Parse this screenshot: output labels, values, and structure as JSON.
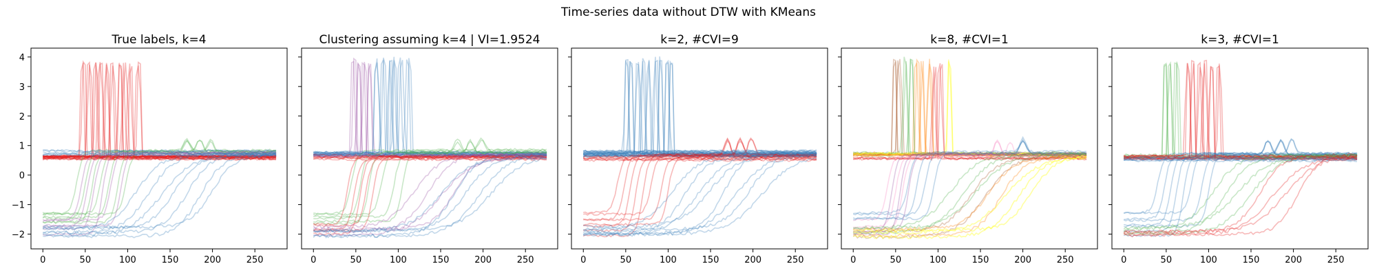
{
  "figure": {
    "suptitle": "Time-series data without DTW with KMeans"
  },
  "chart_data": [
    {
      "type": "line",
      "title": "True labels, k=4",
      "xlim": [
        -14,
        288
      ],
      "ylim": [
        -2.5,
        4.3
      ],
      "x_ticks": [
        0,
        50,
        100,
        150,
        200,
        250
      ],
      "y_ticks": [
        -2,
        -1,
        0,
        1,
        2,
        3,
        4
      ],
      "show_y_tick_labels": true,
      "grid": false,
      "series": [
        {
          "color": "#e41a1c",
          "kind": "spike",
          "spike_x": [
            48,
            55,
            62,
            68,
            75,
            82,
            90,
            96,
            103,
            112
          ],
          "baseline": 0.6
        },
        {
          "color": "#4daf4a",
          "kind": "plateau",
          "rise_x": [
            40,
            50,
            58,
            68,
            78,
            88,
            98
          ],
          "lows": [
            -1.3,
            -1.45,
            -1.6
          ],
          "high": 0.8,
          "bump_x": [
            170,
            185,
            198
          ],
          "bump_y": 1.2
        },
        {
          "color": "#984ea3",
          "kind": "plateau",
          "rise_x": [
            45,
            52,
            60,
            70,
            80,
            92
          ],
          "lows": [
            -1.55,
            -1.7,
            -1.85,
            -2.0
          ],
          "high": 0.75
        },
        {
          "color": "#377eb8",
          "kind": "slow",
          "rise_x": [
            110,
            125,
            140,
            155,
            170,
            185,
            200
          ],
          "lows": [
            -1.8,
            -1.95,
            -2.05
          ],
          "high": 0.7,
          "flat_level": 0.75
        }
      ]
    },
    {
      "type": "line",
      "title": "Clustering assuming k=4 | VI=1.9524",
      "xlim": [
        -14,
        288
      ],
      "ylim": [
        -2.5,
        4.3
      ],
      "x_ticks": [
        0,
        50,
        100,
        150,
        200,
        250
      ],
      "y_ticks": [
        -2,
        -1,
        0,
        1,
        2,
        3,
        4
      ],
      "show_y_tick_labels": false,
      "grid": false,
      "series": [
        {
          "color": "#984ea3",
          "kind": "spike",
          "spike_x": [
            48,
            54,
            60,
            66
          ],
          "baseline": 0.7
        },
        {
          "color": "#377eb8",
          "kind": "spike",
          "spike_x": [
            75,
            82,
            90,
            96,
            103,
            112
          ],
          "baseline": 0.72
        },
        {
          "color": "#4daf4a",
          "kind": "plateau",
          "rise_x": [
            45,
            55,
            65,
            80,
            95,
            105
          ],
          "lows": [
            -1.3,
            -1.45,
            -1.6
          ],
          "high": 0.8,
          "bump_x": [
            170,
            185,
            198
          ],
          "bump_y": 1.2
        },
        {
          "color": "#e41a1c",
          "kind": "plateau",
          "rise_x": [
            40,
            48,
            55,
            62,
            70
          ],
          "lows": [
            -1.7,
            -1.85,
            -2.0
          ],
          "high": 0.6,
          "flat_level": 0.6
        },
        {
          "color": "#984ea3",
          "kind": "slow",
          "rise_x": [
            120,
            135,
            150,
            165
          ],
          "lows": [
            -1.8,
            -1.95,
            -2.05
          ],
          "high": 0.65
        },
        {
          "color": "#377eb8",
          "kind": "slow",
          "rise_x": [
            150,
            165,
            180,
            195,
            210
          ],
          "lows": [
            -1.9,
            -2.05
          ],
          "high": 0.65
        }
      ]
    },
    {
      "type": "line",
      "title": "k=2, #CVI=9",
      "xlim": [
        -14,
        288
      ],
      "ylim": [
        -2.5,
        4.3
      ],
      "x_ticks": [
        0,
        50,
        100,
        150,
        200,
        250
      ],
      "y_ticks": [
        -2,
        -1,
        0,
        1,
        2,
        3,
        4
      ],
      "show_y_tick_labels": false,
      "grid": false,
      "series": [
        {
          "color": "#377eb8",
          "kind": "spike",
          "spike_x": [
            50,
            57,
            64,
            70,
            78,
            85,
            92,
            98,
            105
          ],
          "baseline": 0.7
        },
        {
          "color": "#e41a1c",
          "kind": "plateau",
          "rise_x": [
            40,
            48,
            55,
            62,
            70,
            80,
            92,
            100
          ],
          "lows": [
            -1.3,
            -1.5,
            -1.7,
            -1.9,
            -2.05
          ],
          "high": 0.65,
          "bump_x": [
            170,
            185,
            198
          ],
          "bump_y": 1.2,
          "flat_level": 0.55
        },
        {
          "color": "#377eb8",
          "kind": "slow",
          "rise_x": [
            105,
            120,
            135,
            150,
            165,
            180,
            195,
            210
          ],
          "lows": [
            -1.8,
            -1.95,
            -2.05
          ],
          "high": 0.7,
          "flat_level": 0.75
        }
      ]
    },
    {
      "type": "line",
      "title": "k=8, #CVI=1",
      "xlim": [
        -14,
        288
      ],
      "ylim": [
        -2.5,
        4.3
      ],
      "x_ticks": [
        0,
        50,
        100,
        150,
        200,
        250
      ],
      "y_ticks": [
        -2,
        -1,
        0,
        1,
        2,
        3,
        4
      ],
      "show_y_tick_labels": false,
      "grid": false,
      "series": [
        {
          "color": "#a65628",
          "kind": "spike",
          "spike_x": [
            48,
            54
          ],
          "baseline": 0.7
        },
        {
          "color": "#4daf4a",
          "kind": "spike",
          "spike_x": [
            62,
            68
          ],
          "baseline": 0.7
        },
        {
          "color": "#ff7f00",
          "kind": "spike",
          "spike_x": [
            75,
            82,
            90
          ],
          "baseline": 0.65
        },
        {
          "color": "#e41a1c",
          "kind": "spike",
          "spike_x": [
            96,
            103
          ],
          "baseline": 0.6
        },
        {
          "color": "#ffff33",
          "kind": "spike",
          "spike_x": [
            112
          ],
          "baseline": 0.7
        },
        {
          "color": "#f781bf",
          "kind": "plateau",
          "rise_x": [
            40,
            50,
            58
          ],
          "lows": [
            -1.5,
            -1.7,
            -1.85
          ],
          "high": 0.65,
          "bump_x": [
            170,
            185
          ],
          "bump_y": 1.15
        },
        {
          "color": "#377eb8",
          "kind": "plateau",
          "rise_x": [
            65,
            75,
            85,
            95
          ],
          "lows": [
            -1.3,
            -1.45
          ],
          "high": 0.75,
          "bump_x": [
            200
          ],
          "bump_y": 1.2
        },
        {
          "color": "#984ea3",
          "kind": "plateau",
          "rise_x": [
            45,
            55,
            65
          ],
          "lows": [
            -1.9,
            -2.0
          ],
          "high": 0.7
        },
        {
          "color": "#4daf4a",
          "kind": "slow",
          "rise_x": [
            115,
            130,
            145
          ],
          "lows": [
            -1.8,
            -1.95
          ],
          "high": 0.65
        },
        {
          "color": "#a65628",
          "kind": "slow",
          "rise_x": [
            140,
            155
          ],
          "lows": [
            -1.9,
            -2.05
          ],
          "high": 0.65
        },
        {
          "color": "#ff7f00",
          "kind": "slow",
          "rise_x": [
            160,
            175
          ],
          "lows": [
            -1.8,
            -2.0
          ],
          "high": 0.65
        },
        {
          "color": "#ffff33",
          "kind": "slow",
          "rise_x": [
            180,
            195,
            210
          ],
          "lows": [
            -1.9,
            -2.05
          ],
          "high": 0.6
        }
      ]
    },
    {
      "type": "line",
      "title": "k=3, #CVI=1",
      "xlim": [
        -14,
        288
      ],
      "ylim": [
        -2.5,
        4.3
      ],
      "x_ticks": [
        0,
        50,
        100,
        150,
        200,
        250
      ],
      "y_ticks": [
        -2,
        -1,
        0,
        1,
        2,
        3,
        4
      ],
      "show_y_tick_labels": false,
      "grid": false,
      "series": [
        {
          "color": "#4daf4a",
          "kind": "spike",
          "spike_x": [
            48,
            55,
            62
          ],
          "baseline": 0.65
        },
        {
          "color": "#e41a1c",
          "kind": "spike",
          "spike_x": [
            75,
            82,
            90,
            96,
            103,
            112
          ],
          "baseline": 0.6
        },
        {
          "color": "#377eb8",
          "kind": "plateau",
          "rise_x": [
            40,
            48,
            55,
            62,
            70,
            80,
            92,
            100
          ],
          "lows": [
            -1.3,
            -1.5,
            -1.7,
            -1.9,
            -2.05
          ],
          "high": 0.72,
          "bump_x": [
            170,
            185,
            198
          ],
          "bump_y": 1.2,
          "flat_level": 0.55
        },
        {
          "color": "#4daf4a",
          "kind": "slow",
          "rise_x": [
            105,
            120,
            135,
            150
          ],
          "lows": [
            -1.8,
            -1.95
          ],
          "high": 0.7
        },
        {
          "color": "#e41a1c",
          "kind": "slow",
          "rise_x": [
            160,
            175,
            190,
            205
          ],
          "lows": [
            -1.9,
            -2.05
          ],
          "high": 0.65
        }
      ]
    }
  ]
}
